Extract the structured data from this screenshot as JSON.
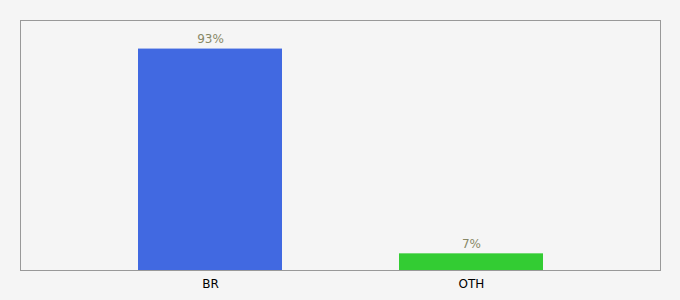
{
  "chart_data": {
    "type": "bar",
    "categories": [
      "BR",
      "OTH"
    ],
    "values": [
      93,
      7
    ],
    "value_labels": [
      "93%",
      "7%"
    ],
    "colors": [
      "#4169e1",
      "#33cc33"
    ],
    "ylim": [
      0,
      105
    ],
    "data_labels": true,
    "tick_labels": "x"
  }
}
